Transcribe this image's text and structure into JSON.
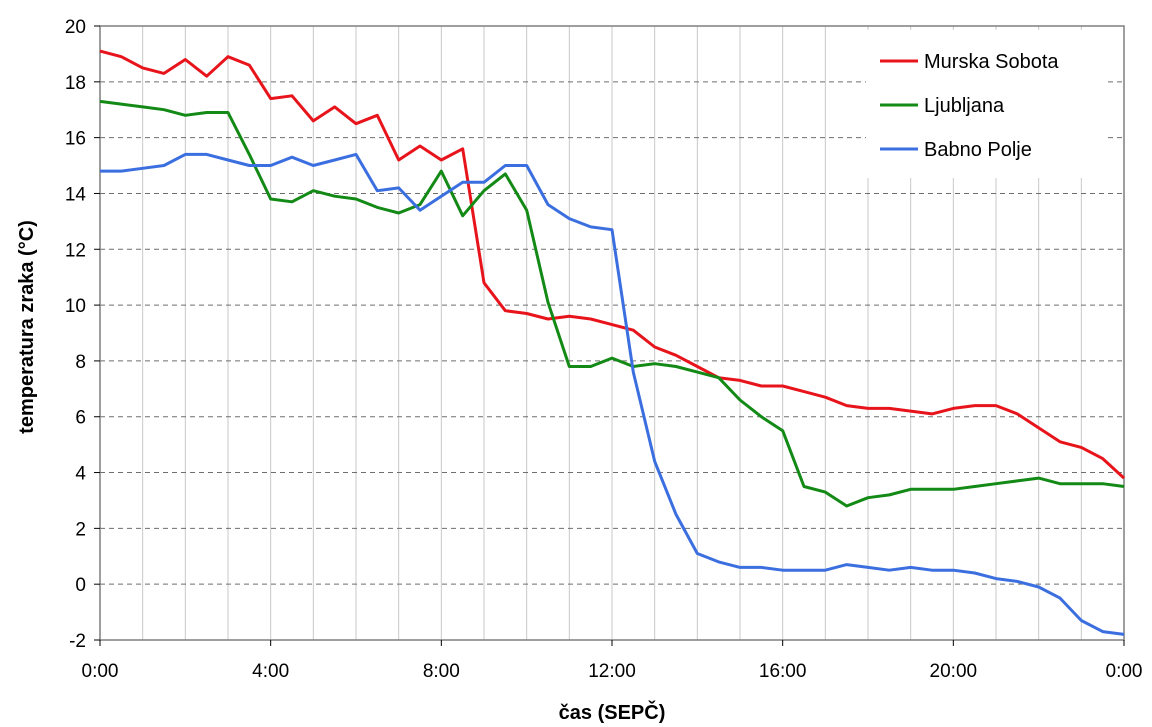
{
  "chart_data": {
    "type": "line",
    "xlabel": "čas (SEPČ)",
    "ylabel": "temperatura zraka (°C)",
    "ylim": [
      -2,
      20
    ],
    "xlim": [
      0,
      24
    ],
    "y_ticks": [
      "-2",
      "0",
      "2",
      "4",
      "6",
      "8",
      "10",
      "12",
      "14",
      "16",
      "18",
      "20"
    ],
    "x_ticks": [
      "0:00",
      "4:00",
      "8:00",
      "12:00",
      "16:00",
      "20:00",
      "0:00"
    ],
    "grid": "dashed horizontal, solid vertical",
    "legend_position": "top-right",
    "x": [
      "0:00",
      "0:30",
      "1:00",
      "1:30",
      "2:00",
      "2:30",
      "3:00",
      "3:30",
      "4:00",
      "4:30",
      "5:00",
      "5:30",
      "6:00",
      "6:30",
      "7:00",
      "7:30",
      "8:00",
      "8:30",
      "9:00",
      "9:30",
      "10:00",
      "10:30",
      "11:00",
      "11:30",
      "12:00",
      "12:30",
      "13:00",
      "13:30",
      "14:00",
      "14:30",
      "15:00",
      "15:30",
      "16:00",
      "16:30",
      "17:00",
      "17:30",
      "18:00",
      "18:30",
      "19:00",
      "19:30",
      "20:00",
      "20:30",
      "21:00",
      "21:30",
      "22:00",
      "22:30",
      "23:00",
      "23:30",
      "0:00"
    ],
    "series": [
      {
        "name": "Murska Sobota",
        "color": "#e8141b",
        "values": [
          19.1,
          18.9,
          18.5,
          18.3,
          18.8,
          18.2,
          18.9,
          18.6,
          17.4,
          17.5,
          16.6,
          17.1,
          16.5,
          16.8,
          15.2,
          15.7,
          15.2,
          15.6,
          10.8,
          9.8,
          9.7,
          9.5,
          9.6,
          9.5,
          9.3,
          9.1,
          8.5,
          8.2,
          7.8,
          7.4,
          7.3,
          7.1,
          7.1,
          6.9,
          6.7,
          6.4,
          6.3,
          6.3,
          6.2,
          6.1,
          6.3,
          6.4,
          6.4,
          6.1,
          5.6,
          5.1,
          4.9,
          4.5,
          3.8
        ]
      },
      {
        "name": "Ljubljana",
        "color": "#138a16",
        "values": [
          17.3,
          17.2,
          17.1,
          17.0,
          16.8,
          16.9,
          16.9,
          15.4,
          13.8,
          13.7,
          14.1,
          13.9,
          13.8,
          13.5,
          13.3,
          13.6,
          14.8,
          13.2,
          14.1,
          14.7,
          13.4,
          10.1,
          7.8,
          7.8,
          8.1,
          7.8,
          7.9,
          7.8,
          7.6,
          7.4,
          6.6,
          6.0,
          5.5,
          3.5,
          3.3,
          2.8,
          3.1,
          3.2,
          3.4,
          3.4,
          3.4,
          3.5,
          3.6,
          3.7,
          3.8,
          3.6,
          3.6,
          3.6,
          3.5
        ]
      },
      {
        "name": "Babno Polje",
        "color": "#3b6fe0",
        "values": [
          14.8,
          14.8,
          14.9,
          15.0,
          15.4,
          15.4,
          15.2,
          15.0,
          15.0,
          15.3,
          15.0,
          15.2,
          15.4,
          14.1,
          14.2,
          13.4,
          13.9,
          14.4,
          14.4,
          15.0,
          15.0,
          13.6,
          13.1,
          12.8,
          12.7,
          7.6,
          4.4,
          2.5,
          1.1,
          0.8,
          0.6,
          0.6,
          0.5,
          0.5,
          0.5,
          0.7,
          0.6,
          0.5,
          0.6,
          0.5,
          0.5,
          0.4,
          0.2,
          0.1,
          -0.1,
          -0.5,
          -1.3,
          -1.7,
          -1.8
        ]
      }
    ]
  }
}
